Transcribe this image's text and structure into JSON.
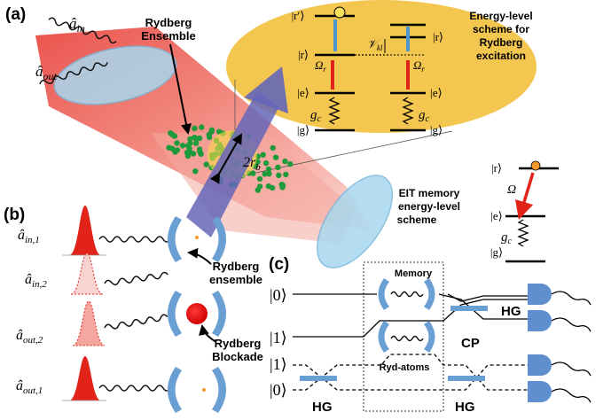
{
  "panels": {
    "a": "(a)",
    "b": "(b)",
    "c": "(c)"
  },
  "panel_a": {
    "a_in": "â",
    "a_in_sub": "in",
    "a_out": "â",
    "a_out_sub": "out",
    "ensemble_label_1": "Rydberg",
    "ensemble_label_2": "Ensemble",
    "r_b": "2r",
    "r_b_sub": "b",
    "scheme_title_1": "Energy-level",
    "scheme_title_2": "scheme for",
    "scheme_title_3": "Rydberg",
    "scheme_title_4": "excitation",
    "levels": {
      "r_prime": "|r′⟩",
      "r": "|r⟩",
      "e": "|e⟩",
      "g": "|g⟩",
      "omega_r": "Ω",
      "omega_r_sub": "r",
      "g_c": "g",
      "g_c_sub": "c",
      "v_kl": "𝒱",
      "v_kl_sub": "kl"
    },
    "eit_title_1": "EIT memory",
    "eit_title_2": "energy-level",
    "eit_title_3": "scheme",
    "eit_levels": {
      "r": "|r⟩",
      "e": "|e⟩",
      "g": "|g⟩",
      "omega": "Ω",
      "g_c": "g",
      "g_c_sub": "c"
    }
  },
  "panel_b": {
    "a_in1": "â",
    "a_in1_sub": "in,1",
    "a_in2": "â",
    "a_in2_sub": "in,2",
    "a_out2": "â",
    "a_out2_sub": "out,2",
    "a_out1": "â",
    "a_out1_sub": "out,1",
    "ensemble_label_1": "Rydberg",
    "ensemble_label_2": "ensemble",
    "blockade_label_1": "Rydberg",
    "blockade_label_2": "Blockade"
  },
  "panel_c": {
    "ket0_top": "|0⟩",
    "ket1_top": "|1⟩",
    "ket1_bottom": "|1⟩",
    "ket0_bottom": "|0⟩",
    "memory": "Memory",
    "hg_right": "HG",
    "cp": "CP",
    "ryd_atoms": "Ryd-atoms",
    "hg_left": "HG",
    "hg_center": "HG"
  },
  "colors": {
    "beam_red": "#e8413a",
    "cavity_blue": "#a8d8ef",
    "ellipse_yellow": "#f3c64f",
    "atom_green": "#1f9a3a",
    "laser_purple": "#6566b8",
    "arrow_red": "#e2231a",
    "arrow_blue": "#4e96d0",
    "mirror_blue": "#6a9fd4",
    "detector_blue": "#5f8fcf",
    "dot_orange": "#f39a2b"
  }
}
